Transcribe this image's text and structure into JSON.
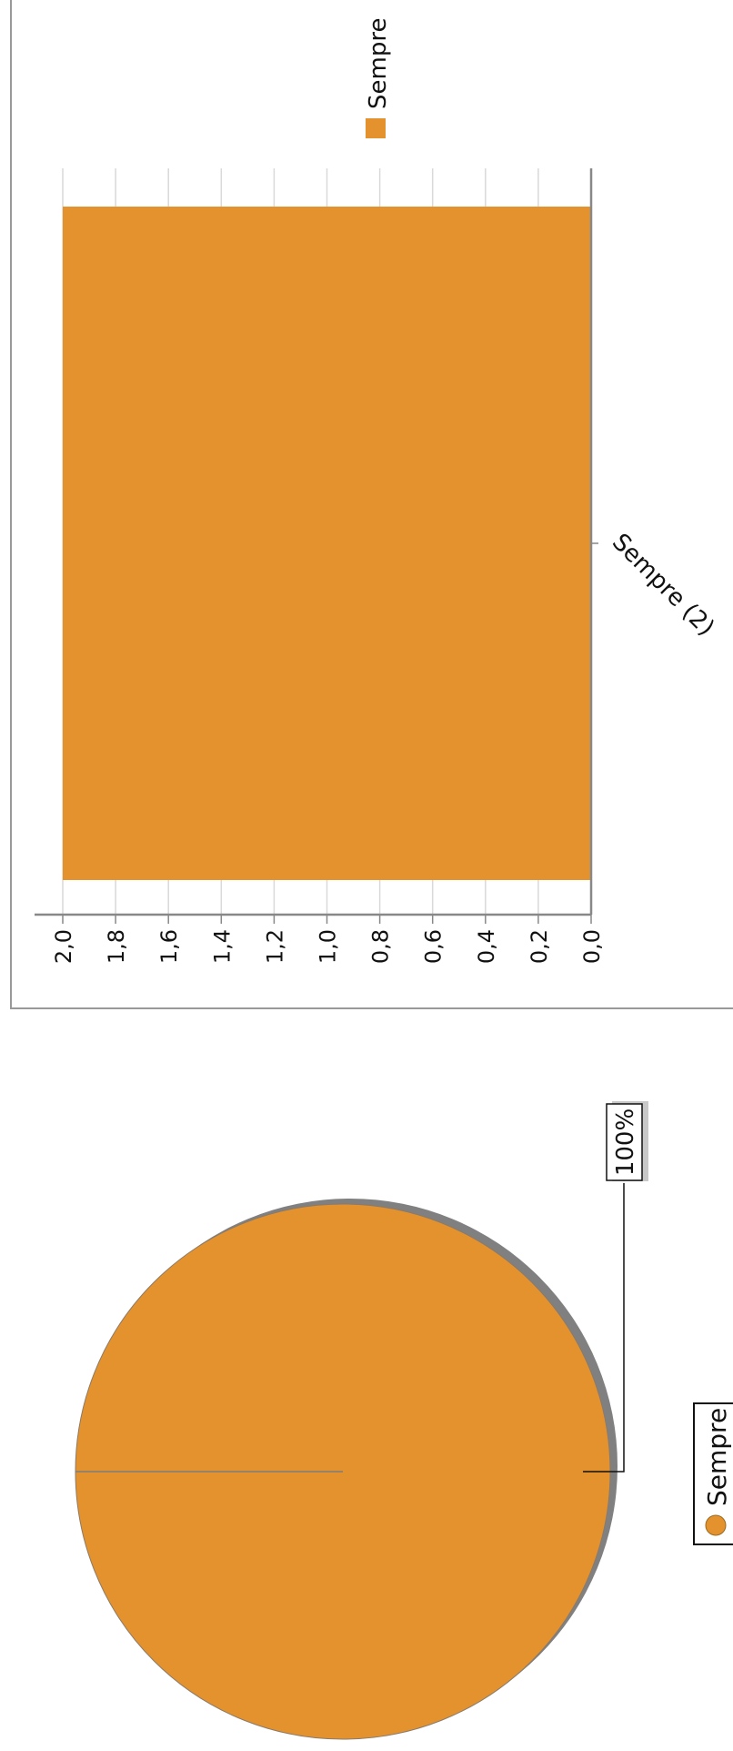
{
  "colors": {
    "series": "#e4922e",
    "pie_shadow": "#808080",
    "grid": "#d9d9d9",
    "axis": "#888888",
    "frame": "#999999",
    "text": "#111111"
  },
  "chart_data": [
    {
      "type": "bar",
      "orientation": "rotated-90",
      "categories": [
        "Sempre (2)"
      ],
      "series": [
        {
          "name": "Sempre",
          "values": [
            2.0
          ]
        }
      ],
      "ylim": [
        0.0,
        2.0
      ],
      "yticks": [
        "0,0",
        "0,2",
        "0,4",
        "0,6",
        "0,8",
        "1,0",
        "1,2",
        "1,4",
        "1,6",
        "1,8",
        "2,0"
      ],
      "grid": true,
      "legend": [
        "Sempre"
      ],
      "legend_position": "top-right"
    },
    {
      "type": "pie",
      "slices": [
        {
          "label": "Sempre",
          "value": 100,
          "percent_label": "100%"
        }
      ],
      "legend": [
        "Sempre"
      ],
      "legend_position": "bottom"
    }
  ]
}
